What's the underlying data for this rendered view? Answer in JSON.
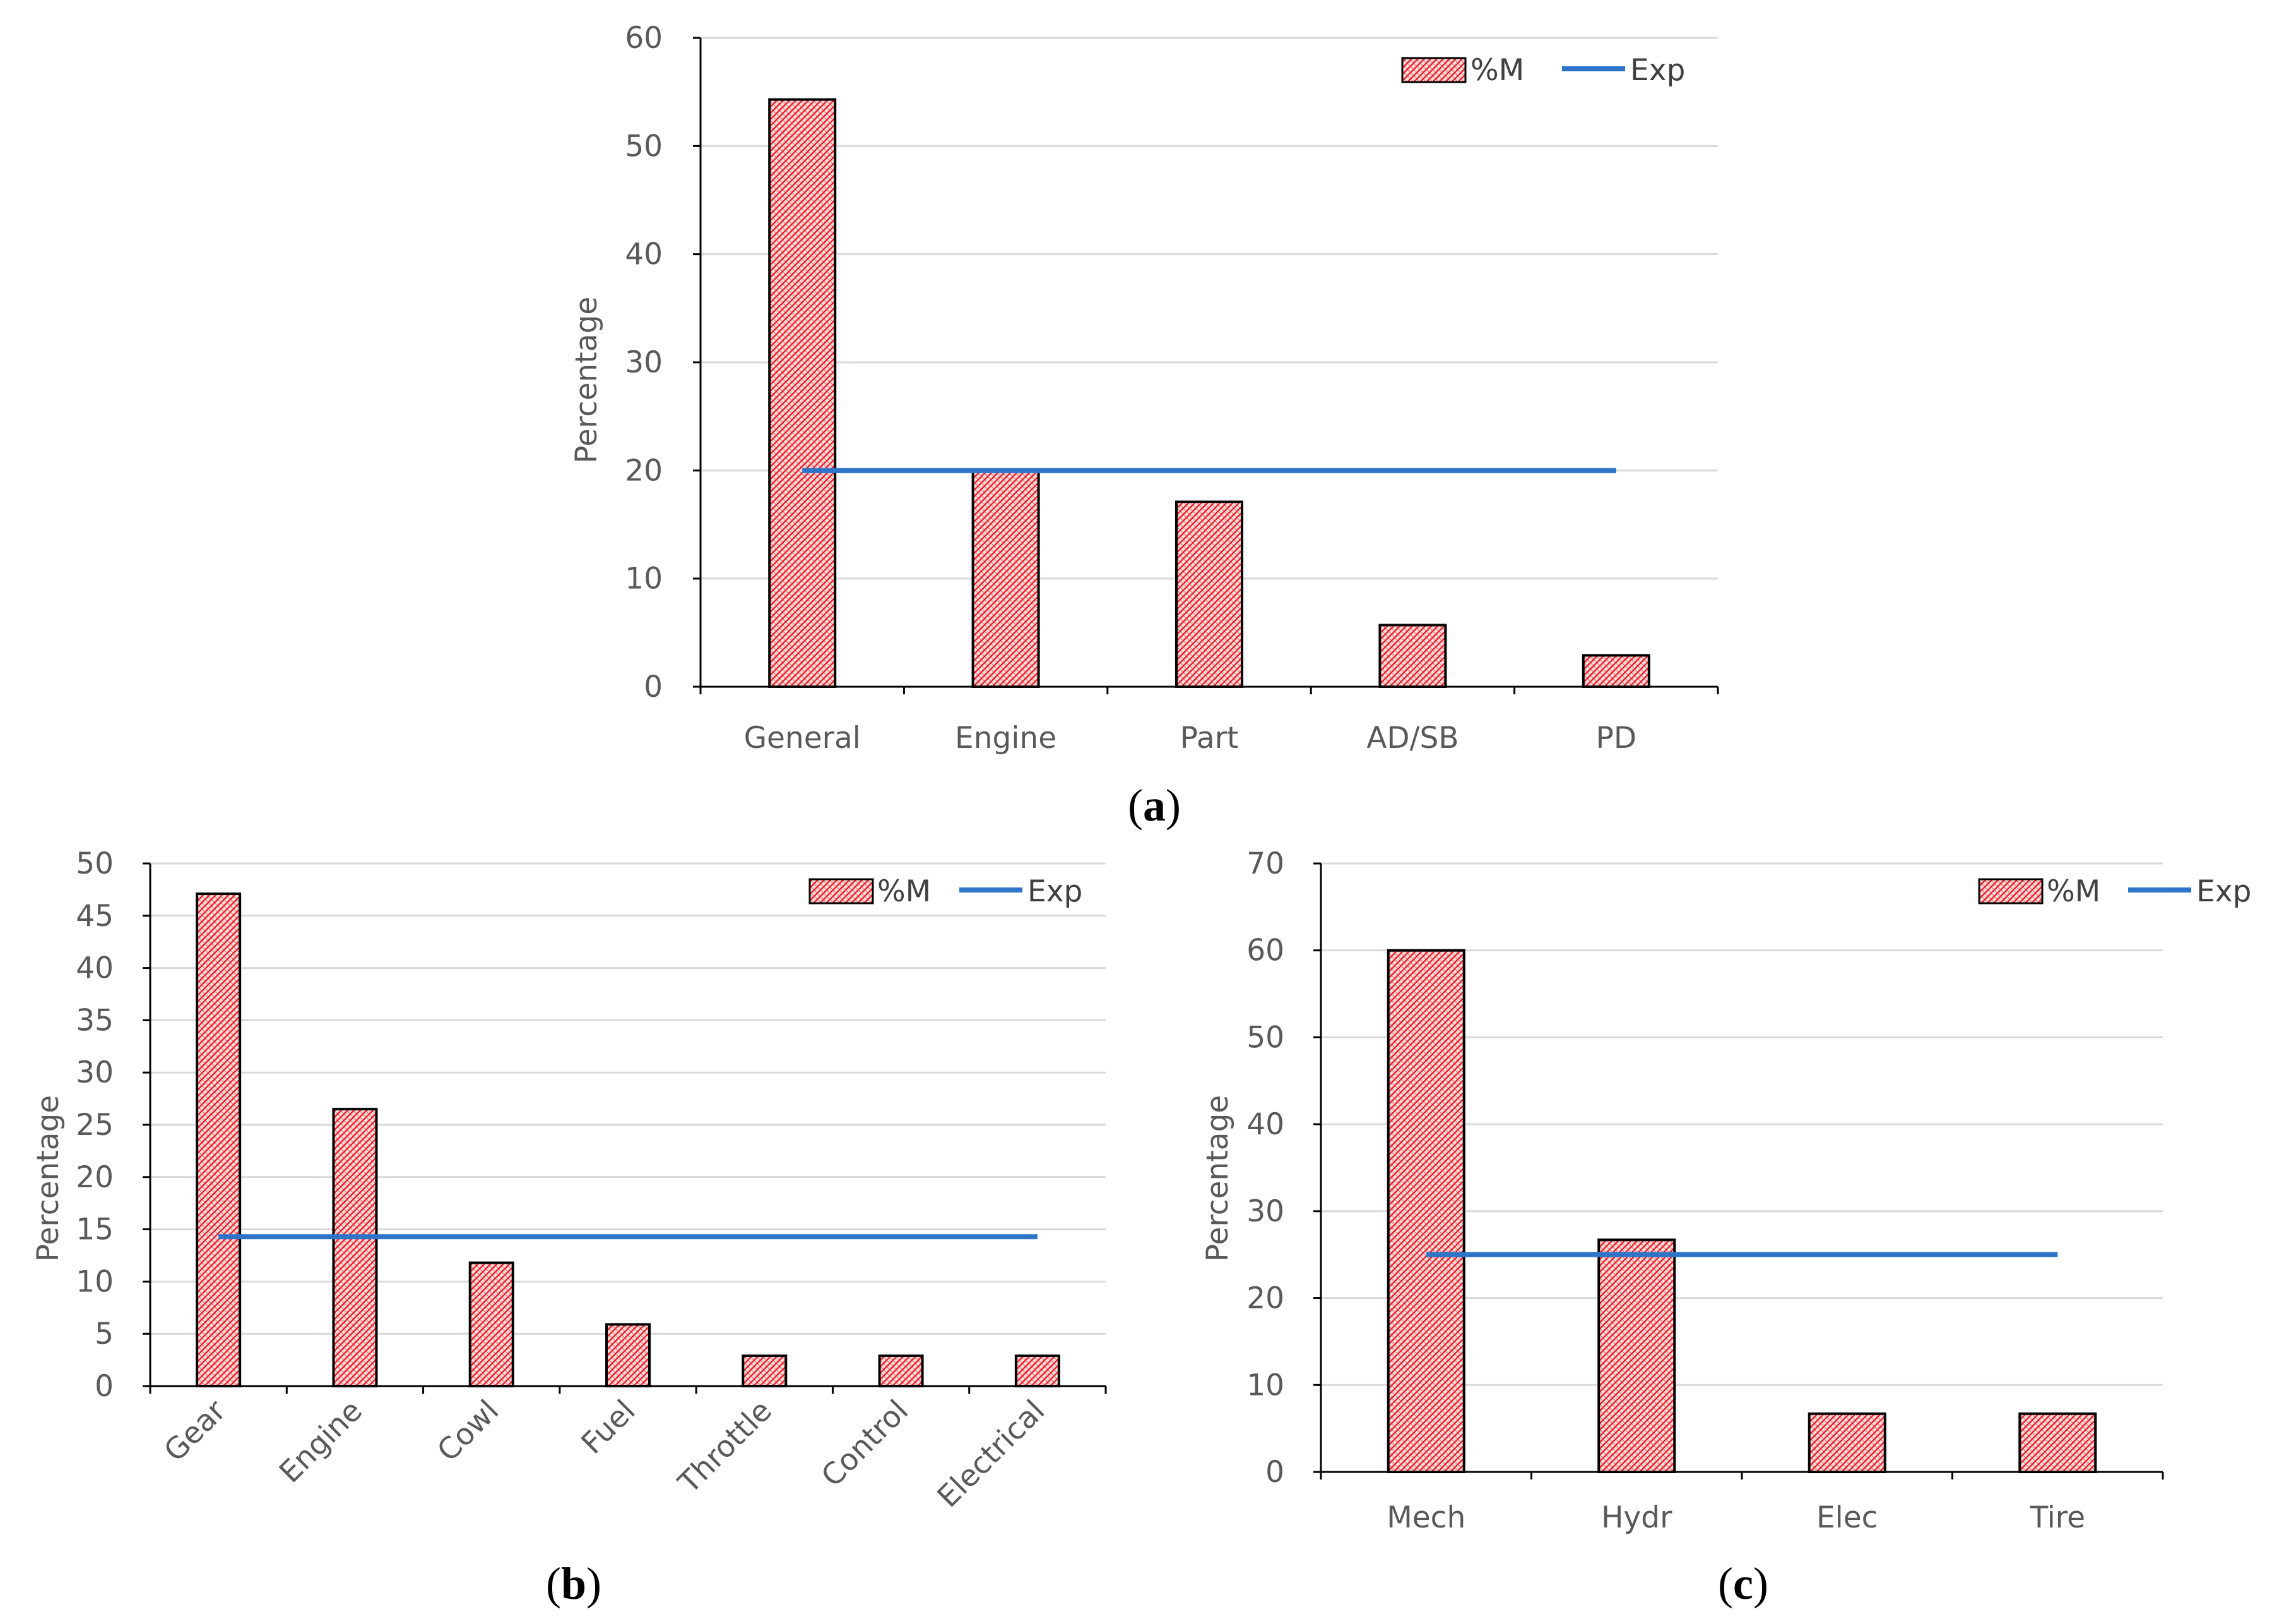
{
  "colors": {
    "bar_fill": "#fbdcdc",
    "bar_hatch": "#e8242b",
    "bar_stroke": "#000000",
    "exp_line": "#2e75c9",
    "grid": "#d9d9d9",
    "axis": "#000000"
  },
  "chart_data": [
    {
      "type": "bar",
      "panel": "a",
      "caption_letter": "a",
      "categories": [
        "General",
        "Engine",
        "Part",
        "AD/SB",
        "PD"
      ],
      "series": [
        {
          "name": "%M",
          "values": [
            54.3,
            20.0,
            17.1,
            5.7,
            2.9
          ]
        },
        {
          "name": "Exp",
          "type": "line",
          "values": [
            20,
            20,
            20,
            20,
            20
          ]
        }
      ],
      "ylabel": "Percentage",
      "ylim": [
        0,
        60
      ],
      "yticks": [
        "0",
        "10",
        "20",
        "30",
        "40",
        "50",
        "60"
      ],
      "grid": true,
      "legend": "top-right",
      "xlabel_rotation": 0
    },
    {
      "type": "bar",
      "panel": "b",
      "caption_letter": "b",
      "categories": [
        "Gear",
        "Engine",
        "Cowl",
        "Fuel",
        "Throttle",
        "Control",
        "Electrical"
      ],
      "series": [
        {
          "name": "%M",
          "values": [
            47.1,
            26.5,
            11.8,
            5.9,
            2.9,
            2.9,
            2.9
          ]
        },
        {
          "name": "Exp",
          "type": "line",
          "values": [
            14.3,
            14.3,
            14.3,
            14.3,
            14.3,
            14.3,
            14.3
          ]
        }
      ],
      "ylabel": "Percentage",
      "ylim": [
        0,
        50
      ],
      "yticks": [
        "0",
        "5",
        "10",
        "15",
        "20",
        "25",
        "30",
        "35",
        "40",
        "45",
        "50"
      ],
      "grid": true,
      "legend": "top-right",
      "xlabel_rotation": -45
    },
    {
      "type": "bar",
      "panel": "c",
      "caption_letter": "c",
      "categories": [
        "Mech",
        "Hydr",
        "Elec",
        "Tire"
      ],
      "series": [
        {
          "name": "%M",
          "values": [
            60.0,
            26.7,
            6.7,
            6.7
          ]
        },
        {
          "name": "Exp",
          "type": "line",
          "values": [
            25,
            25,
            25,
            25
          ]
        }
      ],
      "ylabel": "Percentage",
      "ylim": [
        0,
        70
      ],
      "yticks": [
        "0",
        "10",
        "20",
        "30",
        "40",
        "50",
        "60",
        "70"
      ],
      "grid": true,
      "legend": "top-right",
      "xlabel_rotation": 0
    }
  ]
}
